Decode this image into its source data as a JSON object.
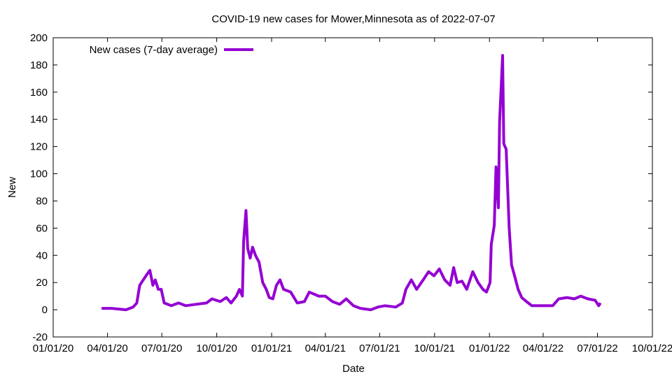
{
  "chart_data": {
    "type": "line",
    "title": "COVID-19 new cases for Mower,Minnesota as of 2022-07-07",
    "xlabel": "Date",
    "ylabel": "New",
    "xlim": [
      "2020-01-01",
      "2022-10-01"
    ],
    "ylim": [
      -20,
      200
    ],
    "yticks": [
      -20,
      0,
      20,
      40,
      60,
      80,
      100,
      120,
      140,
      160,
      180,
      200
    ],
    "xticks": [
      {
        "date": "2020-01-01",
        "label": "01/01/20"
      },
      {
        "date": "2020-04-01",
        "label": "04/01/20"
      },
      {
        "date": "2020-07-01",
        "label": "07/01/20"
      },
      {
        "date": "2020-10-01",
        "label": "10/01/20"
      },
      {
        "date": "2021-01-01",
        "label": "01/01/21"
      },
      {
        "date": "2021-04-01",
        "label": "04/01/21"
      },
      {
        "date": "2021-07-01",
        "label": "07/01/21"
      },
      {
        "date": "2021-10-01",
        "label": "10/01/21"
      },
      {
        "date": "2022-01-01",
        "label": "01/01/22"
      },
      {
        "date": "2022-04-01",
        "label": "04/01/22"
      },
      {
        "date": "2022-07-01",
        "label": "07/01/22"
      },
      {
        "date": "2022-10-01",
        "label": "10/01/22"
      }
    ],
    "grid": false,
    "legend_position": "top-left",
    "series": [
      {
        "name": "New cases (7-day average)",
        "color": "#9400d3",
        "points": [
          [
            "2020-03-22",
            1
          ],
          [
            "2020-04-08",
            1
          ],
          [
            "2020-05-02",
            0
          ],
          [
            "2020-05-14",
            2
          ],
          [
            "2020-05-20",
            5
          ],
          [
            "2020-05-25",
            18
          ],
          [
            "2020-05-31",
            22
          ],
          [
            "2020-06-06",
            26
          ],
          [
            "2020-06-11",
            29
          ],
          [
            "2020-06-16",
            18
          ],
          [
            "2020-06-20",
            22
          ],
          [
            "2020-06-25",
            15
          ],
          [
            "2020-06-30",
            15
          ],
          [
            "2020-07-05",
            5
          ],
          [
            "2020-07-17",
            3
          ],
          [
            "2020-07-29",
            5
          ],
          [
            "2020-08-10",
            3
          ],
          [
            "2020-08-27",
            4
          ],
          [
            "2020-09-14",
            5
          ],
          [
            "2020-09-23",
            8
          ],
          [
            "2020-10-07",
            6
          ],
          [
            "2020-10-17",
            9
          ],
          [
            "2020-10-25",
            5
          ],
          [
            "2020-11-03",
            10
          ],
          [
            "2020-11-08",
            15
          ],
          [
            "2020-11-13",
            10
          ],
          [
            "2020-11-15",
            50
          ],
          [
            "2020-11-19",
            73
          ],
          [
            "2020-11-22",
            45
          ],
          [
            "2020-11-26",
            38
          ],
          [
            "2020-11-30",
            46
          ],
          [
            "2020-12-05",
            40
          ],
          [
            "2020-12-11",
            35
          ],
          [
            "2020-12-17",
            20
          ],
          [
            "2020-12-23",
            15
          ],
          [
            "2020-12-28",
            9
          ],
          [
            "2021-01-03",
            8
          ],
          [
            "2021-01-09",
            18
          ],
          [
            "2021-01-15",
            22
          ],
          [
            "2021-01-21",
            15
          ],
          [
            "2021-02-02",
            13
          ],
          [
            "2021-02-13",
            5
          ],
          [
            "2021-02-25",
            6
          ],
          [
            "2021-03-05",
            13
          ],
          [
            "2021-03-21",
            10
          ],
          [
            "2021-04-01",
            10
          ],
          [
            "2021-04-13",
            6
          ],
          [
            "2021-04-25",
            4
          ],
          [
            "2021-05-06",
            8
          ],
          [
            "2021-05-18",
            3
          ],
          [
            "2021-05-30",
            1
          ],
          [
            "2021-06-16",
            0
          ],
          [
            "2021-06-28",
            2
          ],
          [
            "2021-07-10",
            3
          ],
          [
            "2021-07-28",
            2
          ],
          [
            "2021-08-08",
            5
          ],
          [
            "2021-08-14",
            15
          ],
          [
            "2021-08-23",
            22
          ],
          [
            "2021-09-01",
            15
          ],
          [
            "2021-09-12",
            22
          ],
          [
            "2021-09-21",
            28
          ],
          [
            "2021-09-30",
            25
          ],
          [
            "2021-10-09",
            30
          ],
          [
            "2021-10-18",
            22
          ],
          [
            "2021-10-27",
            18
          ],
          [
            "2021-11-02",
            31
          ],
          [
            "2021-11-08",
            20
          ],
          [
            "2021-11-16",
            21
          ],
          [
            "2021-11-24",
            15
          ],
          [
            "2021-12-04",
            28
          ],
          [
            "2021-12-13",
            20
          ],
          [
            "2021-12-21",
            15
          ],
          [
            "2021-12-27",
            13
          ],
          [
            "2022-01-02",
            20
          ],
          [
            "2022-01-04",
            48
          ],
          [
            "2022-01-09",
            62
          ],
          [
            "2022-01-12",
            105
          ],
          [
            "2022-01-16",
            75
          ],
          [
            "2022-01-18",
            138
          ],
          [
            "2022-01-23",
            187
          ],
          [
            "2022-01-25",
            122
          ],
          [
            "2022-01-29",
            118
          ],
          [
            "2022-02-03",
            60
          ],
          [
            "2022-02-07",
            33
          ],
          [
            "2022-02-12",
            25
          ],
          [
            "2022-02-18",
            15
          ],
          [
            "2022-02-24",
            9
          ],
          [
            "2022-03-04",
            6
          ],
          [
            "2022-03-13",
            3
          ],
          [
            "2022-03-31",
            3
          ],
          [
            "2022-04-17",
            3
          ],
          [
            "2022-04-27",
            8
          ],
          [
            "2022-05-11",
            9
          ],
          [
            "2022-05-23",
            8
          ],
          [
            "2022-06-03",
            10
          ],
          [
            "2022-06-15",
            8
          ],
          [
            "2022-06-27",
            7
          ],
          [
            "2022-07-03",
            3
          ],
          [
            "2022-07-06",
            5
          ]
        ]
      }
    ]
  }
}
